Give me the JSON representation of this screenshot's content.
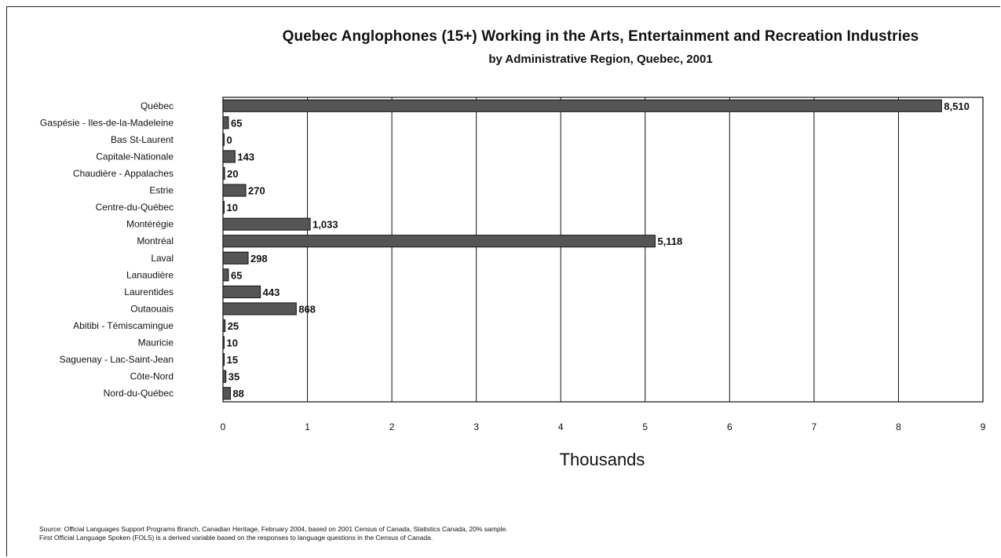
{
  "chart_data": {
    "type": "bar",
    "orientation": "horizontal",
    "title": "Quebec Anglophones (15+) Working in the Arts, Entertainment and Recreation Industries",
    "subtitle": "by Administrative Region, Quebec, 2001",
    "xlabel": "Thousands",
    "ylabel": "",
    "xlim": [
      0,
      9
    ],
    "x_ticks": [
      "0",
      "1",
      "2",
      "3",
      "4",
      "5",
      "6",
      "7",
      "8",
      "9"
    ],
    "grid": "vertical",
    "legend": "none",
    "categories": [
      "Québec",
      "Gaspésie - Iles-de-la-Madeleine",
      "Bas St-Laurent",
      "Capitale-Nationale",
      "Chaudière - Appalaches",
      "Estrie",
      "Centre-du-Québec",
      "Montérégie",
      "Montréal",
      "Laval",
      "Lanaudière",
      "Laurentides",
      "Outaouais",
      "Abitibi - Témiscamingue",
      "Mauricie",
      "Saguenay - Lac-Saint-Jean",
      "Côte-Nord",
      "Nord-du-Québec"
    ],
    "values": [
      8.51,
      0.065,
      0,
      0.143,
      0.02,
      0.27,
      0.01,
      1.033,
      5.118,
      0.298,
      0.065,
      0.443,
      0.868,
      0.025,
      0.01,
      0.015,
      0.035,
      0.088
    ],
    "data_labels": [
      "8,510",
      "65",
      "0",
      "143",
      "20",
      "270",
      "10",
      "1,033",
      "5,118",
      "298",
      "65",
      "443",
      "868",
      "25",
      "10",
      "15",
      "35",
      "88"
    ],
    "bar_color": "#555555",
    "bar_outline": "#111111"
  },
  "source_note": {
    "line1": "Source:  Official Languages Support Programs Branch, Canadian Heritage, February 2004, based on 2001 Census of Canada, Statistics Canada, 20% sample.",
    "line2": "First Official Language Spoken (FOLS) is a derived variable based on the responses to language questions in the Census of Canada."
  }
}
